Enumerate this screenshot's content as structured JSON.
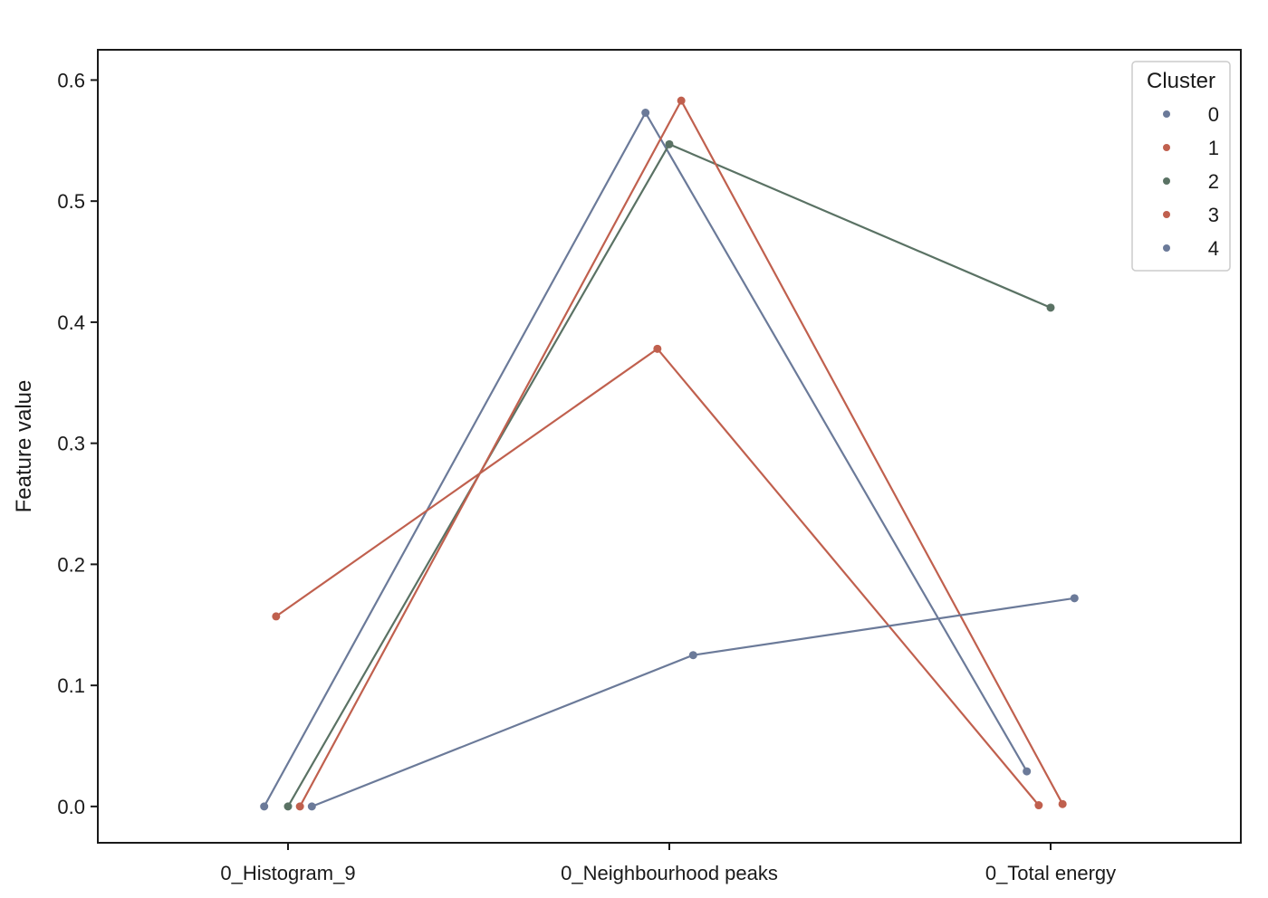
{
  "chart_data": {
    "type": "line",
    "xlabel": "",
    "ylabel": "Feature value",
    "ylim": [
      -0.03,
      0.625
    ],
    "yticks": [
      "0.0",
      "0.1",
      "0.2",
      "0.3",
      "0.4",
      "0.5",
      "0.6"
    ],
    "categories": [
      "0_Histogram_9",
      "0_Neighbourhood peaks",
      "0_Total energy"
    ],
    "grid": false,
    "legend": {
      "title": "Cluster",
      "placement": "top-right"
    },
    "series": [
      {
        "name": "0",
        "color": "#6b7a99",
        "values": [
          0.0,
          0.573,
          0.029
        ],
        "dodge": -0.0625
      },
      {
        "name": "1",
        "color": "#c0604e",
        "values": [
          0.157,
          0.378,
          0.001
        ],
        "dodge": -0.03125
      },
      {
        "name": "2",
        "color": "#5a7264",
        "values": [
          0.0,
          0.547,
          0.412
        ],
        "dodge": 0.0
      },
      {
        "name": "3",
        "color": "#c0604e",
        "values": [
          0.0,
          0.583,
          0.002
        ],
        "dodge": 0.03125
      },
      {
        "name": "4",
        "color": "#6b7a99",
        "values": [
          0.0,
          0.125,
          0.172
        ],
        "dodge": 0.0625
      }
    ]
  }
}
